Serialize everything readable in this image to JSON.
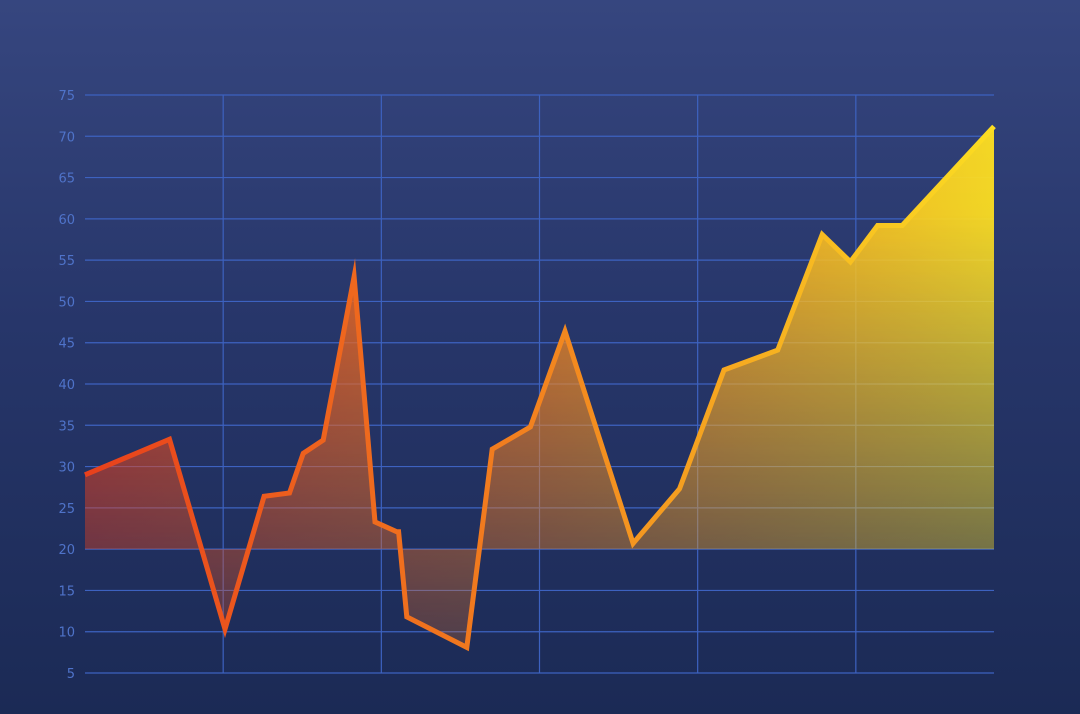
{
  "chart_data": {
    "type": "area",
    "title": "",
    "xlabel": "",
    "ylabel": "",
    "ylim": [
      5,
      75
    ],
    "yticks": [
      5,
      10,
      15,
      20,
      25,
      30,
      35,
      40,
      45,
      50,
      55,
      60,
      65,
      70,
      75
    ],
    "xlim": [
      0,
      100
    ],
    "x_gridlines": [
      15.2,
      32.6,
      50.0,
      67.4,
      84.8
    ],
    "grid": true,
    "legend": "none",
    "area_baseline": 20,
    "colors": {
      "line_start": "#e8401c",
      "line_mid": "#f2831f",
      "line_end": "#fbdd22",
      "grid": "#3d62c0",
      "tick_text": "#4f73c9"
    },
    "series": [
      {
        "x": [
          0,
          9.3,
          15.4,
          19.7,
          22.5,
          24.0,
          26.2,
          29.6,
          31.9,
          34.3,
          34.5,
          35.4,
          42.0,
          44.8,
          49.0,
          52.8,
          60.3,
          65.4,
          70.3,
          76.2,
          81.1,
          84.2,
          87.2,
          89.9,
          100
        ],
        "y": [
          29,
          33.3,
          10.3,
          26.4,
          26.8,
          31.6,
          33.2,
          53,
          23.3,
          22.1,
          22.1,
          11.8,
          8.1,
          32.1,
          34.8,
          46.4,
          20.7,
          27.3,
          41.7,
          44.1,
          58.1,
          54.8,
          59.2,
          59.2,
          71.2
        ]
      }
    ]
  }
}
